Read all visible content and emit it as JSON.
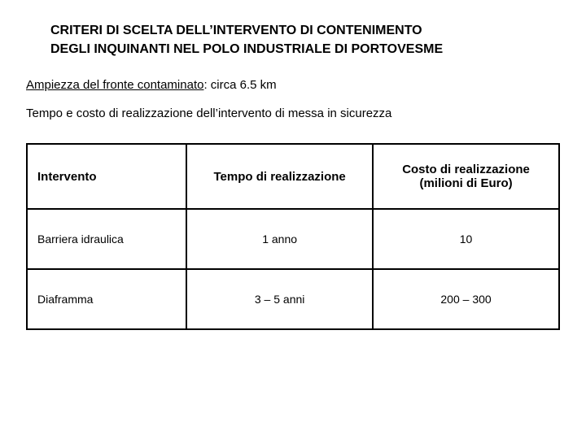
{
  "title_line1": "CRITERI DI SCELTA DELL’INTERVENTO DI CONTENIMENTO",
  "title_line2": "DEGLI INQUINANTI NEL POLO INDUSTRIALE DI PORTOVESME",
  "line1_u": "Ampiezza del fronte contaminato",
  "line1_rest": ": circa 6.5 km",
  "line2": "Tempo e costo di realizzazione dell’intervento di messa in sicurezza",
  "table": {
    "headers": {
      "c1": "Intervento",
      "c2": "Tempo di realizzazione",
      "c3_l1": "Costo di realizzazione",
      "c3_l2": "(milioni di Euro)"
    },
    "rows": [
      {
        "c1": "Barriera idraulica",
        "c2": "1 anno",
        "c3": "10"
      },
      {
        "c1": "Diaframma",
        "c2": "3 – 5 anni",
        "c3": "200 – 300"
      }
    ]
  }
}
